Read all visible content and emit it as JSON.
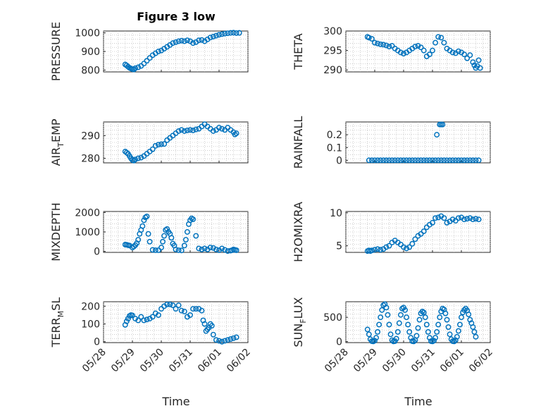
{
  "figure": {
    "title": "Figure 3 low"
  },
  "colors": {
    "marker": "#0072BD",
    "axis": "#262626",
    "grid": "#b0b0b0"
  },
  "chart_data": [
    {
      "id": "pressure",
      "type": "scatter",
      "ylabel": "PRESSURE",
      "ylim": [
        790,
        1010
      ],
      "yticks": [
        800,
        900,
        1000
      ],
      "xlim": [
        0,
        5
      ],
      "grid": true,
      "x": [
        0.75,
        0.8,
        0.85,
        0.9,
        0.95,
        1.0,
        1.05,
        1.1,
        1.2,
        1.3,
        1.4,
        1.5,
        1.6,
        1.7,
        1.8,
        1.9,
        2.0,
        2.1,
        2.2,
        2.3,
        2.4,
        2.5,
        2.6,
        2.7,
        2.8,
        2.9,
        3.0,
        3.1,
        3.2,
        3.3,
        3.4,
        3.5,
        3.6,
        3.7,
        3.8,
        3.9,
        4.0,
        4.1,
        4.2,
        4.3,
        4.4,
        4.5,
        4.6,
        4.7
      ],
      "values": [
        830,
        825,
        818,
        812,
        808,
        805,
        803,
        810,
        815,
        822,
        835,
        850,
        865,
        880,
        890,
        900,
        905,
        915,
        925,
        935,
        945,
        950,
        955,
        958,
        955,
        960,
        955,
        945,
        950,
        960,
        962,
        955,
        965,
        975,
        980,
        985,
        990,
        993,
        996,
        998,
        1000,
        1001,
        999,
        1000
      ]
    },
    {
      "id": "theta",
      "type": "scatter",
      "ylabel": "THETA",
      "ylim": [
        289.5,
        300
      ],
      "yticks": [
        290,
        295,
        300
      ],
      "xlim": [
        0,
        5
      ],
      "grid": true,
      "x": [
        0.75,
        0.8,
        0.9,
        1.0,
        1.1,
        1.2,
        1.3,
        1.4,
        1.5,
        1.6,
        1.7,
        1.8,
        1.9,
        2.0,
        2.1,
        2.2,
        2.3,
        2.4,
        2.5,
        2.6,
        2.7,
        2.8,
        2.9,
        3.0,
        3.1,
        3.2,
        3.3,
        3.4,
        3.5,
        3.6,
        3.7,
        3.8,
        3.9,
        4.0,
        4.1,
        4.2,
        4.3,
        4.4,
        4.45,
        4.5,
        4.55,
        4.6,
        4.65
      ],
      "values": [
        298.5,
        298.3,
        298,
        297,
        296.8,
        296.6,
        296.5,
        296.3,
        296,
        296.2,
        295.5,
        295,
        294.5,
        294.2,
        294.5,
        295,
        295.5,
        296,
        296.2,
        295.8,
        295,
        293.5,
        294,
        295,
        297,
        298.5,
        298.3,
        297,
        295.5,
        295,
        294.5,
        294.3,
        294.8,
        294.5,
        294,
        293,
        293.8,
        292,
        291.2,
        290.5,
        291,
        292.5,
        290.5
      ]
    },
    {
      "id": "air_temp",
      "type": "scatter",
      "ylabel": "AIR",
      "ylabel_sub": "T",
      "ylabel_suffix": "EMP",
      "ylim": [
        278,
        296
      ],
      "yticks": [
        280,
        290
      ],
      "xlim": [
        0,
        5
      ],
      "grid": true,
      "x": [
        0.75,
        0.8,
        0.85,
        0.9,
        0.95,
        1.0,
        1.05,
        1.1,
        1.2,
        1.3,
        1.4,
        1.5,
        1.6,
        1.7,
        1.8,
        1.9,
        2.0,
        2.1,
        2.2,
        2.3,
        2.4,
        2.5,
        2.6,
        2.7,
        2.8,
        2.9,
        3.0,
        3.1,
        3.2,
        3.3,
        3.4,
        3.5,
        3.6,
        3.7,
        3.8,
        3.9,
        4.0,
        4.1,
        4.2,
        4.3,
        4.4,
        4.5,
        4.55,
        4.6
      ],
      "values": [
        283,
        282.5,
        282,
        281,
        280,
        279.2,
        279,
        279.5,
        280,
        280.3,
        281,
        282,
        283,
        284,
        285.5,
        286,
        286.2,
        286.3,
        288,
        289,
        290,
        291,
        292,
        292.5,
        292,
        292.3,
        292.5,
        292.3,
        292.7,
        293,
        294,
        295,
        294,
        293,
        292,
        292.5,
        293.5,
        293,
        292.5,
        293.5,
        292.5,
        291.5,
        290.5,
        291
      ]
    },
    {
      "id": "rainfall",
      "type": "scatter",
      "ylabel": "RAINFALL",
      "ylim": [
        -0.02,
        0.3
      ],
      "yticks": [
        0,
        0.1,
        0.2
      ],
      "xlim": [
        0,
        5
      ],
      "grid": true,
      "x": [
        0.8,
        0.9,
        1.0,
        1.1,
        1.2,
        1.3,
        1.4,
        1.5,
        1.6,
        1.7,
        1.8,
        1.9,
        2.0,
        2.1,
        2.2,
        2.3,
        2.4,
        2.5,
        2.6,
        2.7,
        2.8,
        2.9,
        3.0,
        3.1,
        3.2,
        3.3,
        3.4,
        3.5,
        3.6,
        3.7,
        3.8,
        3.9,
        4.0,
        4.1,
        4.2,
        4.3,
        4.4,
        4.5,
        4.6,
        3.25,
        3.3,
        3.35,
        3.15
      ],
      "values": [
        0,
        0,
        0,
        0,
        0,
        0,
        0,
        0,
        0,
        0,
        0,
        0,
        0,
        0,
        0,
        0,
        0,
        0,
        0,
        0,
        0,
        0,
        0,
        0,
        0,
        0,
        0,
        0,
        0,
        0,
        0,
        0,
        0,
        0,
        0,
        0,
        0,
        0,
        0,
        0.28,
        0.28,
        0.28,
        0.2
      ]
    },
    {
      "id": "mixdepth",
      "type": "scatter",
      "ylabel": "MIXDEPTH",
      "ylim": [
        -50,
        2050
      ],
      "yticks": [
        0,
        1000,
        2000
      ],
      "xlim": [
        0,
        5
      ],
      "grid": true,
      "x": [
        0.75,
        0.8,
        0.85,
        0.9,
        1.0,
        1.05,
        1.1,
        1.15,
        1.2,
        1.25,
        1.3,
        1.35,
        1.4,
        1.45,
        1.5,
        1.55,
        1.6,
        1.7,
        1.8,
        1.9,
        2.0,
        2.05,
        2.1,
        2.15,
        2.2,
        2.25,
        2.3,
        2.35,
        2.4,
        2.45,
        2.5,
        2.6,
        2.7,
        2.8,
        2.85,
        2.9,
        2.95,
        3.0,
        3.05,
        3.1,
        3.2,
        3.3,
        3.4,
        3.5,
        3.6,
        3.7,
        3.8,
        3.9,
        4.0,
        4.1,
        4.2,
        4.3,
        4.4,
        4.45,
        4.5,
        4.55,
        4.6
      ],
      "values": [
        350,
        340,
        320,
        300,
        200,
        250,
        320,
        420,
        600,
        900,
        1100,
        1300,
        1600,
        1750,
        1800,
        900,
        500,
        80,
        60,
        60,
        200,
        500,
        800,
        1100,
        1150,
        1000,
        900,
        700,
        400,
        300,
        100,
        60,
        50,
        300,
        600,
        1000,
        1400,
        1600,
        1700,
        1650,
        800,
        150,
        100,
        150,
        100,
        200,
        180,
        100,
        60,
        150,
        80,
        20,
        40,
        60,
        100,
        80,
        60
      ]
    },
    {
      "id": "h2omixra",
      "type": "scatter",
      "ylabel": "H2OMIXRA",
      "ylim": [
        4,
        10.2
      ],
      "yticks": [
        5,
        10
      ],
      "xlim": [
        0,
        5
      ],
      "grid": true,
      "x": [
        0.75,
        0.8,
        0.85,
        0.9,
        1.0,
        1.1,
        1.2,
        1.3,
        1.4,
        1.5,
        1.6,
        1.7,
        1.8,
        1.9,
        2.0,
        2.1,
        2.2,
        2.3,
        2.4,
        2.5,
        2.6,
        2.7,
        2.8,
        2.9,
        3.0,
        3.1,
        3.2,
        3.3,
        3.4,
        3.5,
        3.6,
        3.7,
        3.8,
        3.9,
        4.0,
        4.1,
        4.2,
        4.3,
        4.4,
        4.5,
        4.6
      ],
      "values": [
        4.2,
        4.3,
        4.2,
        4.3,
        4.4,
        4.5,
        4.4,
        4.5,
        4.8,
        5.0,
        5.5,
        5.8,
        5.5,
        5.2,
        4.8,
        4.6,
        4.8,
        5.3,
        6.0,
        6.5,
        6.8,
        7.2,
        7.8,
        8.2,
        8.5,
        9.2,
        9.3,
        9.5,
        9.2,
        8.5,
        8.7,
        9.0,
        8.8,
        9.2,
        9.3,
        9.0,
        9.1,
        9.2,
        9.0,
        9.1,
        9.0
      ]
    },
    {
      "id": "terr_msl",
      "type": "scatter",
      "ylabel": "TERR",
      "ylabel_sub": "M",
      "ylabel_suffix": "SL",
      "ylim": [
        -5,
        225
      ],
      "yticks": [
        0,
        100,
        200
      ],
      "xlim": [
        0,
        5
      ],
      "grid": true,
      "x": [
        0.75,
        0.8,
        0.85,
        0.9,
        0.95,
        1.0,
        1.1,
        1.2,
        1.3,
        1.4,
        1.5,
        1.6,
        1.7,
        1.8,
        1.9,
        2.0,
        2.1,
        2.2,
        2.3,
        2.4,
        2.5,
        2.6,
        2.7,
        2.8,
        2.9,
        3.0,
        3.1,
        3.2,
        3.3,
        3.4,
        3.45,
        3.5,
        3.55,
        3.6,
        3.65,
        3.7,
        3.75,
        3.8,
        3.9,
        4.0,
        4.1,
        4.2,
        4.3,
        4.4,
        4.5,
        4.6
      ],
      "values": [
        95,
        115,
        130,
        145,
        150,
        148,
        130,
        120,
        140,
        120,
        125,
        130,
        140,
        160,
        150,
        185,
        200,
        210,
        210,
        205,
        185,
        205,
        175,
        170,
        140,
        150,
        185,
        185,
        185,
        175,
        120,
        100,
        60,
        70,
        80,
        100,
        90,
        40,
        10,
        5,
        0,
        5,
        10,
        15,
        20,
        25
      ]
    },
    {
      "id": "sun_flux",
      "type": "scatter",
      "ylabel": "SUN",
      "ylabel_sub": "F",
      "ylabel_suffix": "LUX",
      "ylim": [
        -20,
        820
      ],
      "yticks": [
        0,
        500
      ],
      "xlim": [
        0,
        5
      ],
      "grid": true,
      "x": [
        0.75,
        0.8,
        0.85,
        0.9,
        0.95,
        1.0,
        1.05,
        1.1,
        1.15,
        1.2,
        1.25,
        1.3,
        1.35,
        1.4,
        1.45,
        1.5,
        1.55,
        1.6,
        1.65,
        1.7,
        1.75,
        1.8,
        1.85,
        1.9,
        1.95,
        2.0,
        2.05,
        2.1,
        2.15,
        2.2,
        2.25,
        2.3,
        2.35,
        2.4,
        2.45,
        2.5,
        2.55,
        2.6,
        2.65,
        2.7,
        2.75,
        2.8,
        2.85,
        2.9,
        2.95,
        3.0,
        3.05,
        3.1,
        3.15,
        3.2,
        3.25,
        3.3,
        3.35,
        3.4,
        3.45,
        3.5,
        3.55,
        3.6,
        3.65,
        3.7,
        3.75,
        3.8,
        3.85,
        3.9,
        3.95,
        4.0,
        4.05,
        4.1,
        4.15,
        4.2,
        4.25,
        4.3,
        4.35,
        4.4,
        4.45,
        4.5
      ],
      "values": [
        250,
        150,
        50,
        10,
        5,
        20,
        80,
        200,
        350,
        500,
        650,
        750,
        770,
        700,
        550,
        350,
        150,
        30,
        5,
        10,
        60,
        200,
        380,
        550,
        680,
        700,
        650,
        500,
        350,
        200,
        80,
        10,
        5,
        30,
        120,
        280,
        450,
        580,
        620,
        600,
        500,
        350,
        200,
        80,
        10,
        5,
        20,
        80,
        200,
        350,
        500,
        620,
        680,
        660,
        580,
        450,
        300,
        150,
        50,
        10,
        5,
        30,
        100,
        220,
        350,
        500,
        600,
        650,
        680,
        640,
        560,
        450,
        380,
        300,
        200,
        100
      ]
    }
  ],
  "shared_axes": {
    "xticklabels": [
      "05/28",
      "05/29",
      "05/30",
      "05/31",
      "06/01",
      "06/02"
    ],
    "xlabel": "Time"
  }
}
